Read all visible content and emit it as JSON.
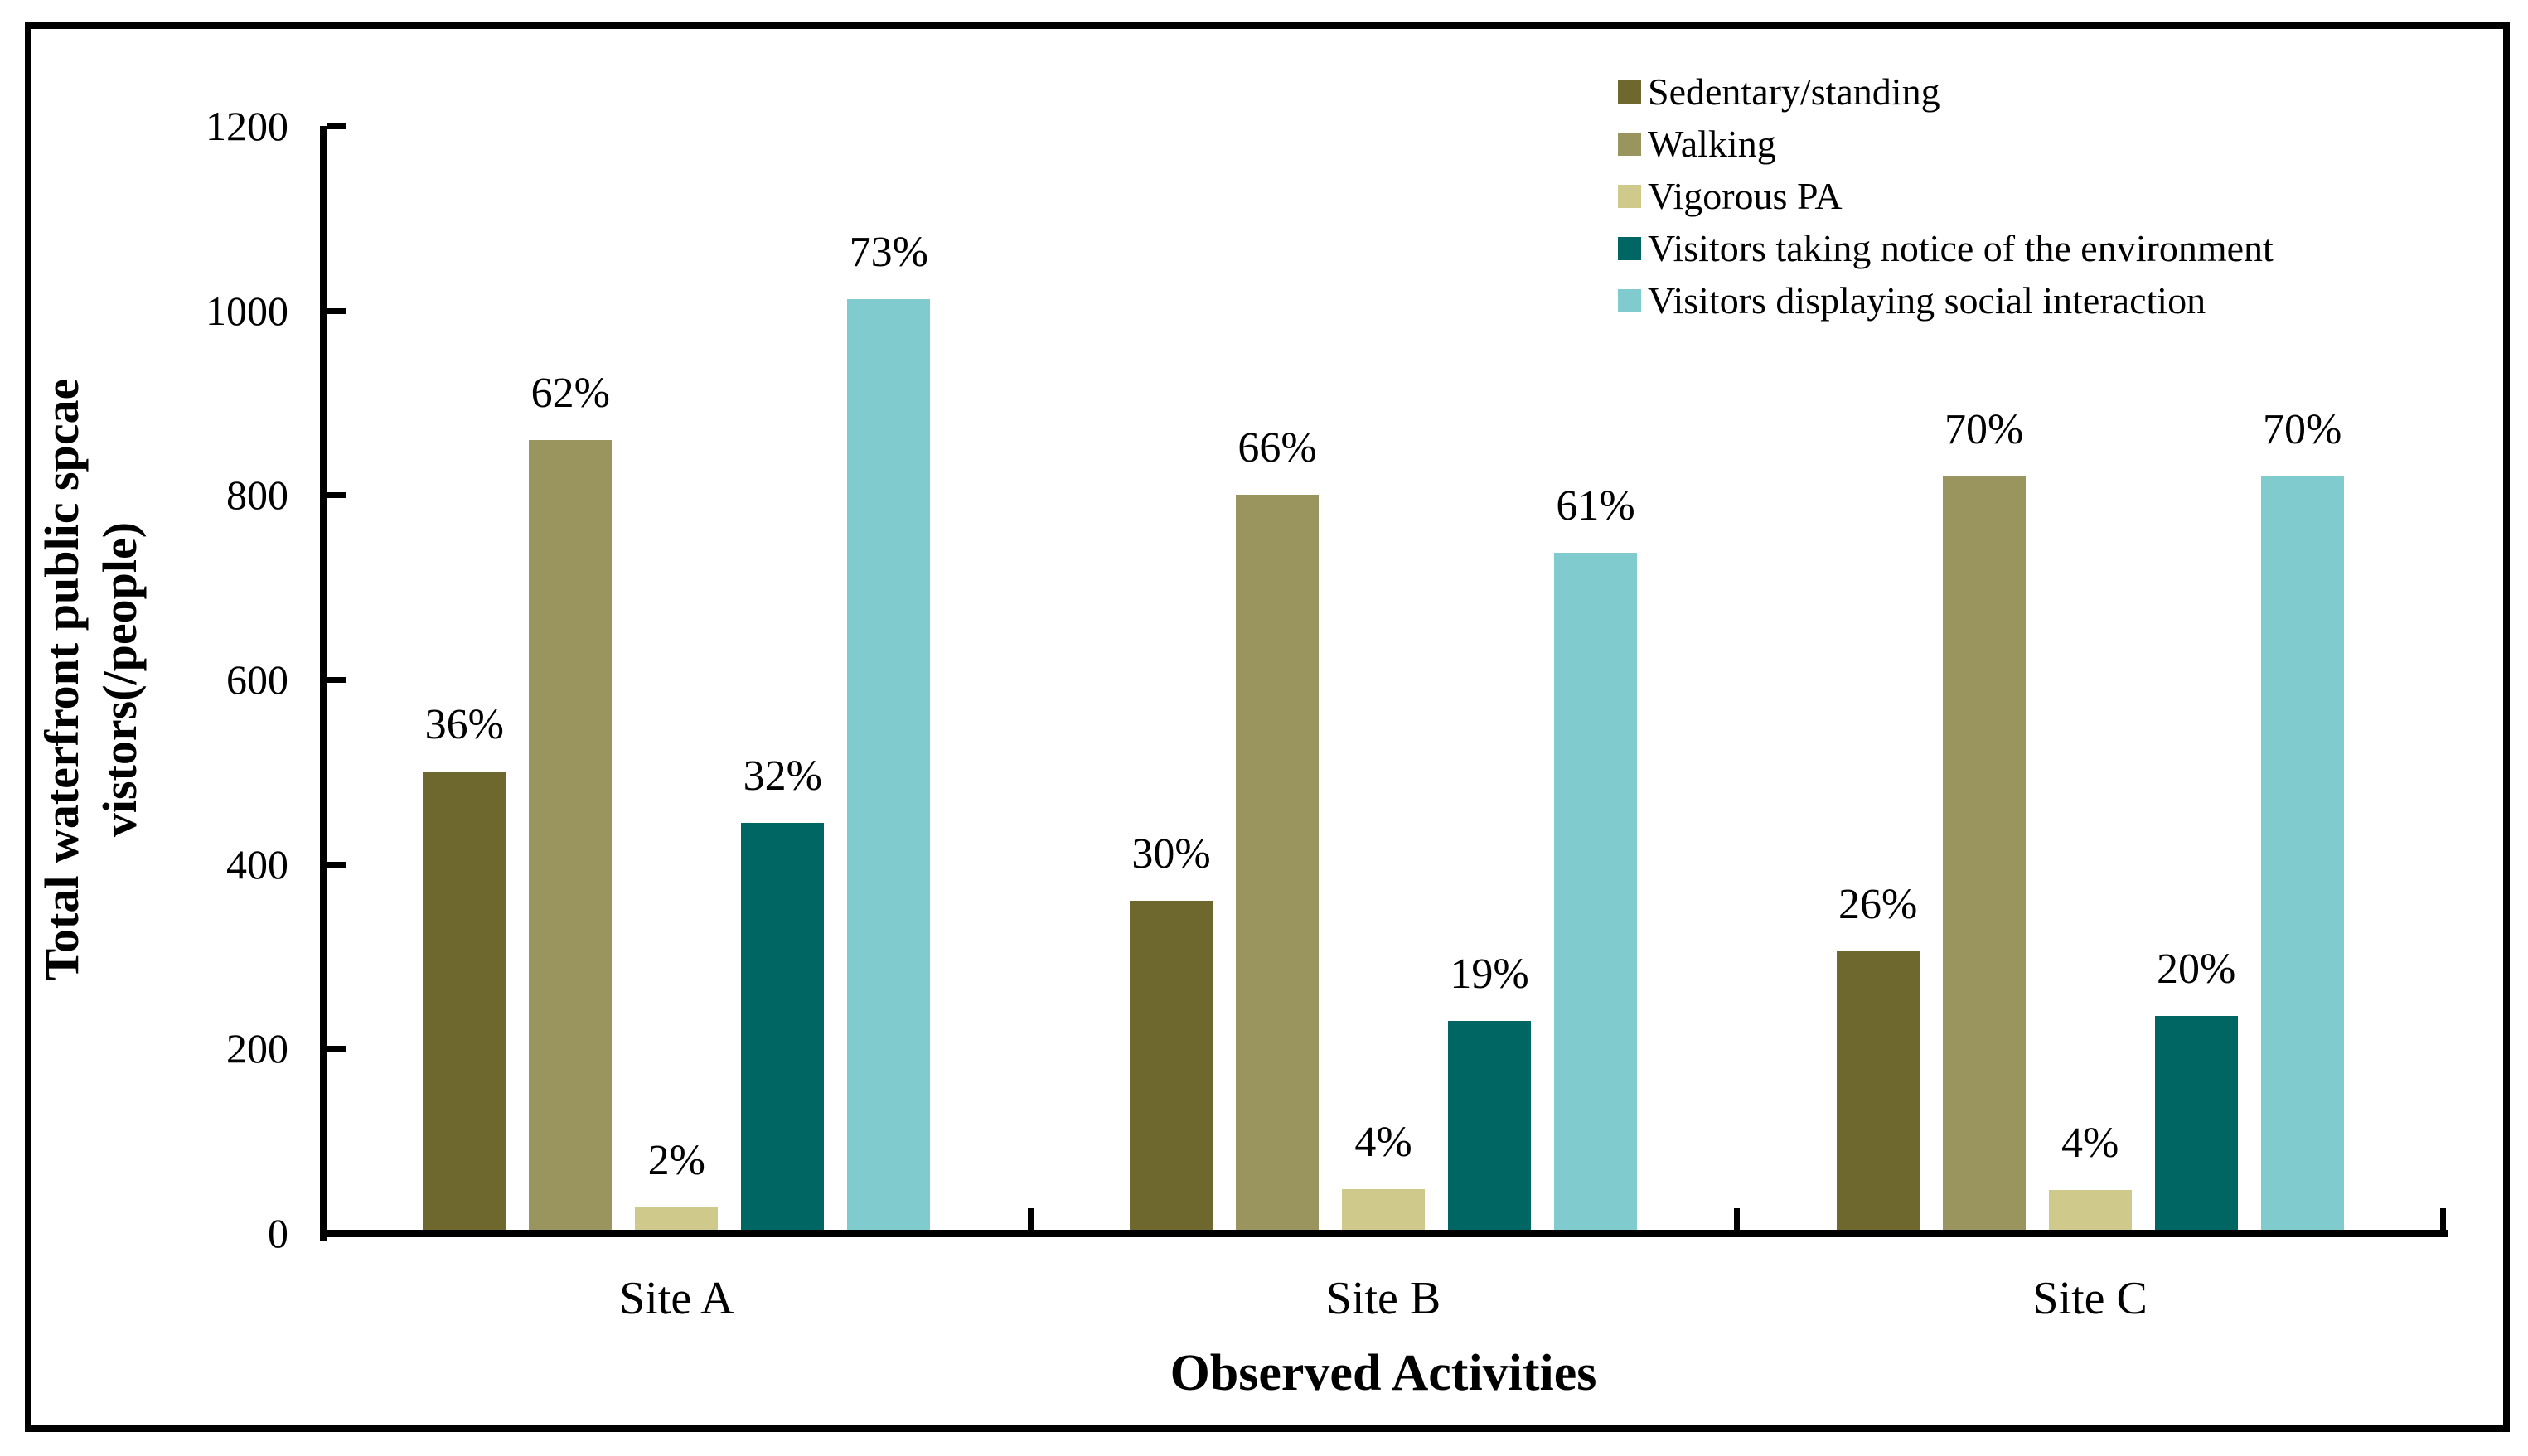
{
  "figure": {
    "background": "#ffffff",
    "frame_color": "#000000",
    "text_color": "#000000"
  },
  "chart_data": {
    "type": "bar",
    "title": "",
    "xlabel": "Observed Activities",
    "ylabel_lines": [
      "Total waterfront public spcae",
      "vistors(/people)"
    ],
    "categories": [
      "Site A",
      "Site B",
      "Site C"
    ],
    "series": [
      {
        "name": "Sedentary/standing",
        "color": "#6e672e",
        "values": [
          500,
          360,
          305
        ],
        "bar_labels": [
          "36%",
          "30%",
          "26%"
        ]
      },
      {
        "name": "Walking",
        "color": "#9a945f",
        "values": [
          860,
          800,
          820
        ],
        "bar_labels": [
          "62%",
          "66%",
          "70%"
        ]
      },
      {
        "name": "Vigorous PA",
        "color": "#cfca8c",
        "values": [
          28,
          48,
          47
        ],
        "bar_labels": [
          "2%",
          "4%",
          "4%"
        ]
      },
      {
        "name": "Visitors taking notice of the environment",
        "color": "#006663",
        "values": [
          445,
          230,
          235
        ],
        "bar_labels": [
          "32%",
          "19%",
          "20%"
        ]
      },
      {
        "name": "Visitors displaying social interaction",
        "color": "#80cbce",
        "values": [
          1012,
          737,
          820
        ],
        "bar_labels": [
          "73%",
          "61%",
          "70%"
        ]
      }
    ],
    "y_ticks": [
      0,
      200,
      400,
      600,
      800,
      1000,
      1200
    ],
    "ylim": [
      0,
      1200
    ],
    "grid": false,
    "legend_position": "top-right"
  }
}
